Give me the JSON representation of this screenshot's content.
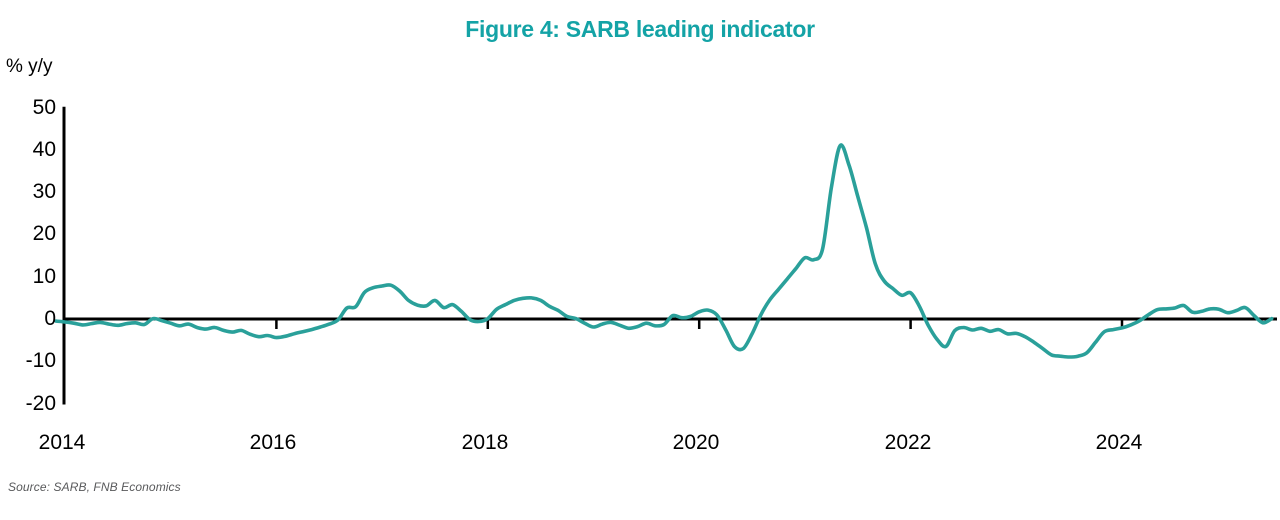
{
  "header": {
    "title": "Figure 4: SARB leading indicator"
  },
  "footer": {
    "source": "Source: SARB, FNB Economics"
  },
  "chart_data": {
    "type": "line",
    "title": "Figure 4: SARB leading indicator",
    "ylabel": "% y/y",
    "xlabel": "",
    "legend": "none",
    "grid": "off",
    "ylim": [
      -20,
      50
    ],
    "y_tick_labels": [
      "50",
      "40",
      "30",
      "20",
      "10",
      "0",
      "-10",
      "-20"
    ],
    "y_tick_values": [
      50,
      40,
      30,
      20,
      10,
      0,
      -10,
      -20
    ],
    "x_tick_labels": [
      "2014",
      "2016",
      "2018",
      "2020",
      "2022",
      "2024"
    ],
    "x_range_start": "2013-12",
    "x_range_end": "2025-06",
    "frequency": "monthly",
    "title_color": "#14a3a6",
    "line_color": "#2aa09a",
    "axis_color": "#000000",
    "source_color": "#58595b",
    "series": [
      {
        "name": "SARB leading indicator, % y/y",
        "start": "2013-12",
        "values": [
          -0.5,
          -0.7,
          -1.0,
          -1.4,
          -1.1,
          -0.8,
          -1.2,
          -1.5,
          -1.1,
          -0.9,
          -1.3,
          0.1,
          -0.4,
          -1.0,
          -1.6,
          -1.2,
          -2.0,
          -2.4,
          -2.0,
          -2.7,
          -3.1,
          -2.7,
          -3.6,
          -4.2,
          -3.9,
          -4.4,
          -4.1,
          -3.5,
          -3.0,
          -2.5,
          -1.9,
          -1.2,
          -0.2,
          2.6,
          2.9,
          6.3,
          7.4,
          7.8,
          8.0,
          6.6,
          4.4,
          3.3,
          3.1,
          4.4,
          2.7,
          3.4,
          1.8,
          -0.2,
          -0.6,
          0.1,
          2.3,
          3.4,
          4.4,
          4.9,
          5.0,
          4.4,
          3.0,
          2.0,
          0.6,
          0.1,
          -1.0,
          -1.9,
          -1.2,
          -0.8,
          -1.5,
          -2.2,
          -1.8,
          -1.0,
          -1.6,
          -1.3,
          0.8,
          0.3,
          0.6,
          1.7,
          2.1,
          1.0,
          -2.5,
          -6.5,
          -7.0,
          -3.5,
          1.0,
          4.5,
          7.0,
          9.5,
          12.0,
          14.5,
          14.0,
          16.5,
          31.0,
          41.0,
          36.5,
          29.0,
          21.5,
          13.0,
          9.0,
          7.2,
          5.6,
          6.2,
          3.0,
          -1.5,
          -4.8,
          -6.5,
          -2.8,
          -2.0,
          -2.6,
          -2.2,
          -2.9,
          -2.5,
          -3.5,
          -3.4,
          -4.2,
          -5.5,
          -7.0,
          -8.5,
          -8.8,
          -9.0,
          -8.8,
          -8.0,
          -5.5,
          -3.0,
          -2.5,
          -2.1,
          -1.4,
          -0.4,
          1.0,
          2.2,
          2.4,
          2.6,
          3.2,
          1.6,
          1.8,
          2.4,
          2.3,
          1.5,
          2.0,
          2.7,
          0.8,
          -0.9,
          0.1
        ]
      }
    ]
  }
}
